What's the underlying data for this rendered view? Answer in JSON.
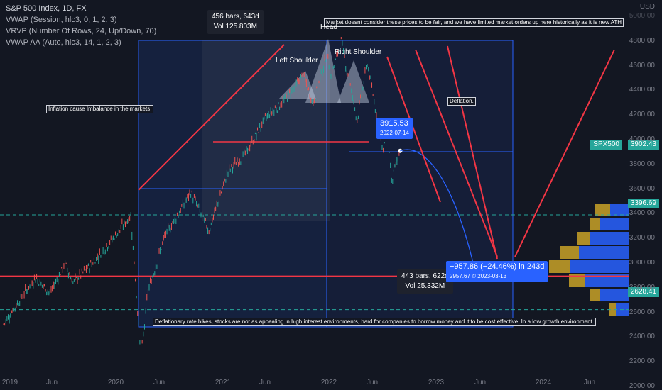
{
  "header": {
    "title": "S&P 500 Index, 1D, FX",
    "indicators": [
      "VWAP (Session, hlc3, 0, 1, 2, 3)",
      "VRVP (Number Of Rows, 24, Up/Down, 70)",
      "VWAP AA (Auto, hlc3, 14, 1, 2, 3)"
    ],
    "currency": "USD"
  },
  "annotations": {
    "ath_note": "Market doesnt consider these prices to be fair, and we have limited market orders up here historically as it is new ATH",
    "inflation_note": "Inflation cause Imbalance in the markets.",
    "deflation_note": "Deflation.",
    "rate_note": "Deflationary rate hikes, stocks are not as appealing in high interest environments, hard for companies to borrow money and it to be cost effective. In a low growth environment.",
    "head": "Head",
    "left_shoulder": "Left Shoulder",
    "right_shoulder": "Right Shoulder"
  },
  "measure_boxes": {
    "top": {
      "bars": "456 bars, 643d",
      "vol": "Vol 125.803M"
    },
    "bottom": {
      "bars": "443 bars, 622d",
      "vol": "Vol 25.332M"
    }
  },
  "callouts": {
    "point_value": "3915.53",
    "point_date": "2022-07-14",
    "projection_change": "−957.86 (−24.46%) in 243d",
    "projection_detail": "2957.67 © 2023-03-13"
  },
  "price_tags": {
    "symbol": "SPX500",
    "last": "3902.43",
    "level_upper": "3396.69",
    "level_lower": "2628.41"
  },
  "colors": {
    "background": "#131722",
    "up_candle": "#26a69a",
    "down_candle": "#ef5350",
    "volume_up": "#2962ff",
    "volume_down": "#c9a227",
    "level_line": "#26a69a",
    "resistance_line": "#f23645",
    "arrow": "#f23645",
    "projection": "#2962ff"
  },
  "chart_data": {
    "type": "line",
    "y_axis": {
      "ticks": [
        2000,
        2200,
        2400,
        2600,
        2800,
        3000,
        3200,
        3400,
        3600,
        3800,
        4000,
        4200,
        4400,
        4600,
        4800,
        5000
      ],
      "ylim": [
        1950,
        5050
      ]
    },
    "x_axis": {
      "ticks": [
        "2019",
        "Jun",
        "2020",
        "Jun",
        "2021",
        "Jun",
        "2022",
        "Jun",
        "2023",
        "Jun",
        "2024",
        "Jun"
      ]
    },
    "series": [
      {
        "values": [
          {
            "x": "2019-01-01",
            "y": 2510
          },
          {
            "x": "2019-02-15",
            "y": 2680
          },
          {
            "x": "2019-04-15",
            "y": 2890
          },
          {
            "x": "2019-06-01",
            "y": 2760
          },
          {
            "x": "2019-07-20",
            "y": 3000
          },
          {
            "x": "2019-08-15",
            "y": 2850
          },
          {
            "x": "2019-10-15",
            "y": 3000
          },
          {
            "x": "2019-12-31",
            "y": 3230
          },
          {
            "x": "2020-02-19",
            "y": 3390
          },
          {
            "x": "2020-03-23",
            "y": 2240
          },
          {
            "x": "2020-04-15",
            "y": 2780
          },
          {
            "x": "2020-06-08",
            "y": 3220
          },
          {
            "x": "2020-09-01",
            "y": 3580
          },
          {
            "x": "2020-10-30",
            "y": 3270
          },
          {
            "x": "2020-12-31",
            "y": 3750
          },
          {
            "x": "2021-03-01",
            "y": 3900
          },
          {
            "x": "2021-05-01",
            "y": 4180
          },
          {
            "x": "2021-07-01",
            "y": 4320
          },
          {
            "x": "2021-09-01",
            "y": 4530
          },
          {
            "x": "2021-10-04",
            "y": 4300
          },
          {
            "x": "2021-11-18",
            "y": 4700
          },
          {
            "x": "2021-12-01",
            "y": 4520
          },
          {
            "x": "2022-01-03",
            "y": 4800
          },
          {
            "x": "2022-02-24",
            "y": 4170
          },
          {
            "x": "2022-03-29",
            "y": 4630
          },
          {
            "x": "2022-05-20",
            "y": 3900
          },
          {
            "x": "2022-06-01",
            "y": 4150
          },
          {
            "x": "2022-06-16",
            "y": 3670
          },
          {
            "x": "2022-07-14",
            "y": 3915
          }
        ]
      }
    ],
    "levels": [
      3396.69,
      2628.41
    ],
    "resistance": 2900,
    "projection_target": {
      "x": "2023-03-13",
      "y": 2957.67
    }
  }
}
